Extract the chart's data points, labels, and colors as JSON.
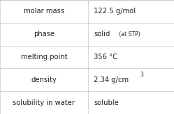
{
  "rows": [
    {
      "label": "molar mass",
      "value": "122.5 g/mol",
      "type": "plain"
    },
    {
      "label": "phase",
      "value": "solid",
      "type": "with_sub",
      "sub": " (at STP)"
    },
    {
      "label": "melting point",
      "value": "356 °C",
      "type": "plain"
    },
    {
      "label": "density",
      "value": "2.34 g/cm",
      "type": "with_sup",
      "sup": "3"
    },
    {
      "label": "solubility in water",
      "value": "soluble",
      "type": "plain"
    }
  ],
  "col_split": 0.505,
  "bg_color": "#ffffff",
  "border_color": "#c8c8c8",
  "label_font_size": 7.2,
  "value_font_size": 7.2,
  "sub_font_size": 5.5,
  "sup_font_size": 5.5,
  "label_color": "#222222",
  "value_color": "#222222"
}
